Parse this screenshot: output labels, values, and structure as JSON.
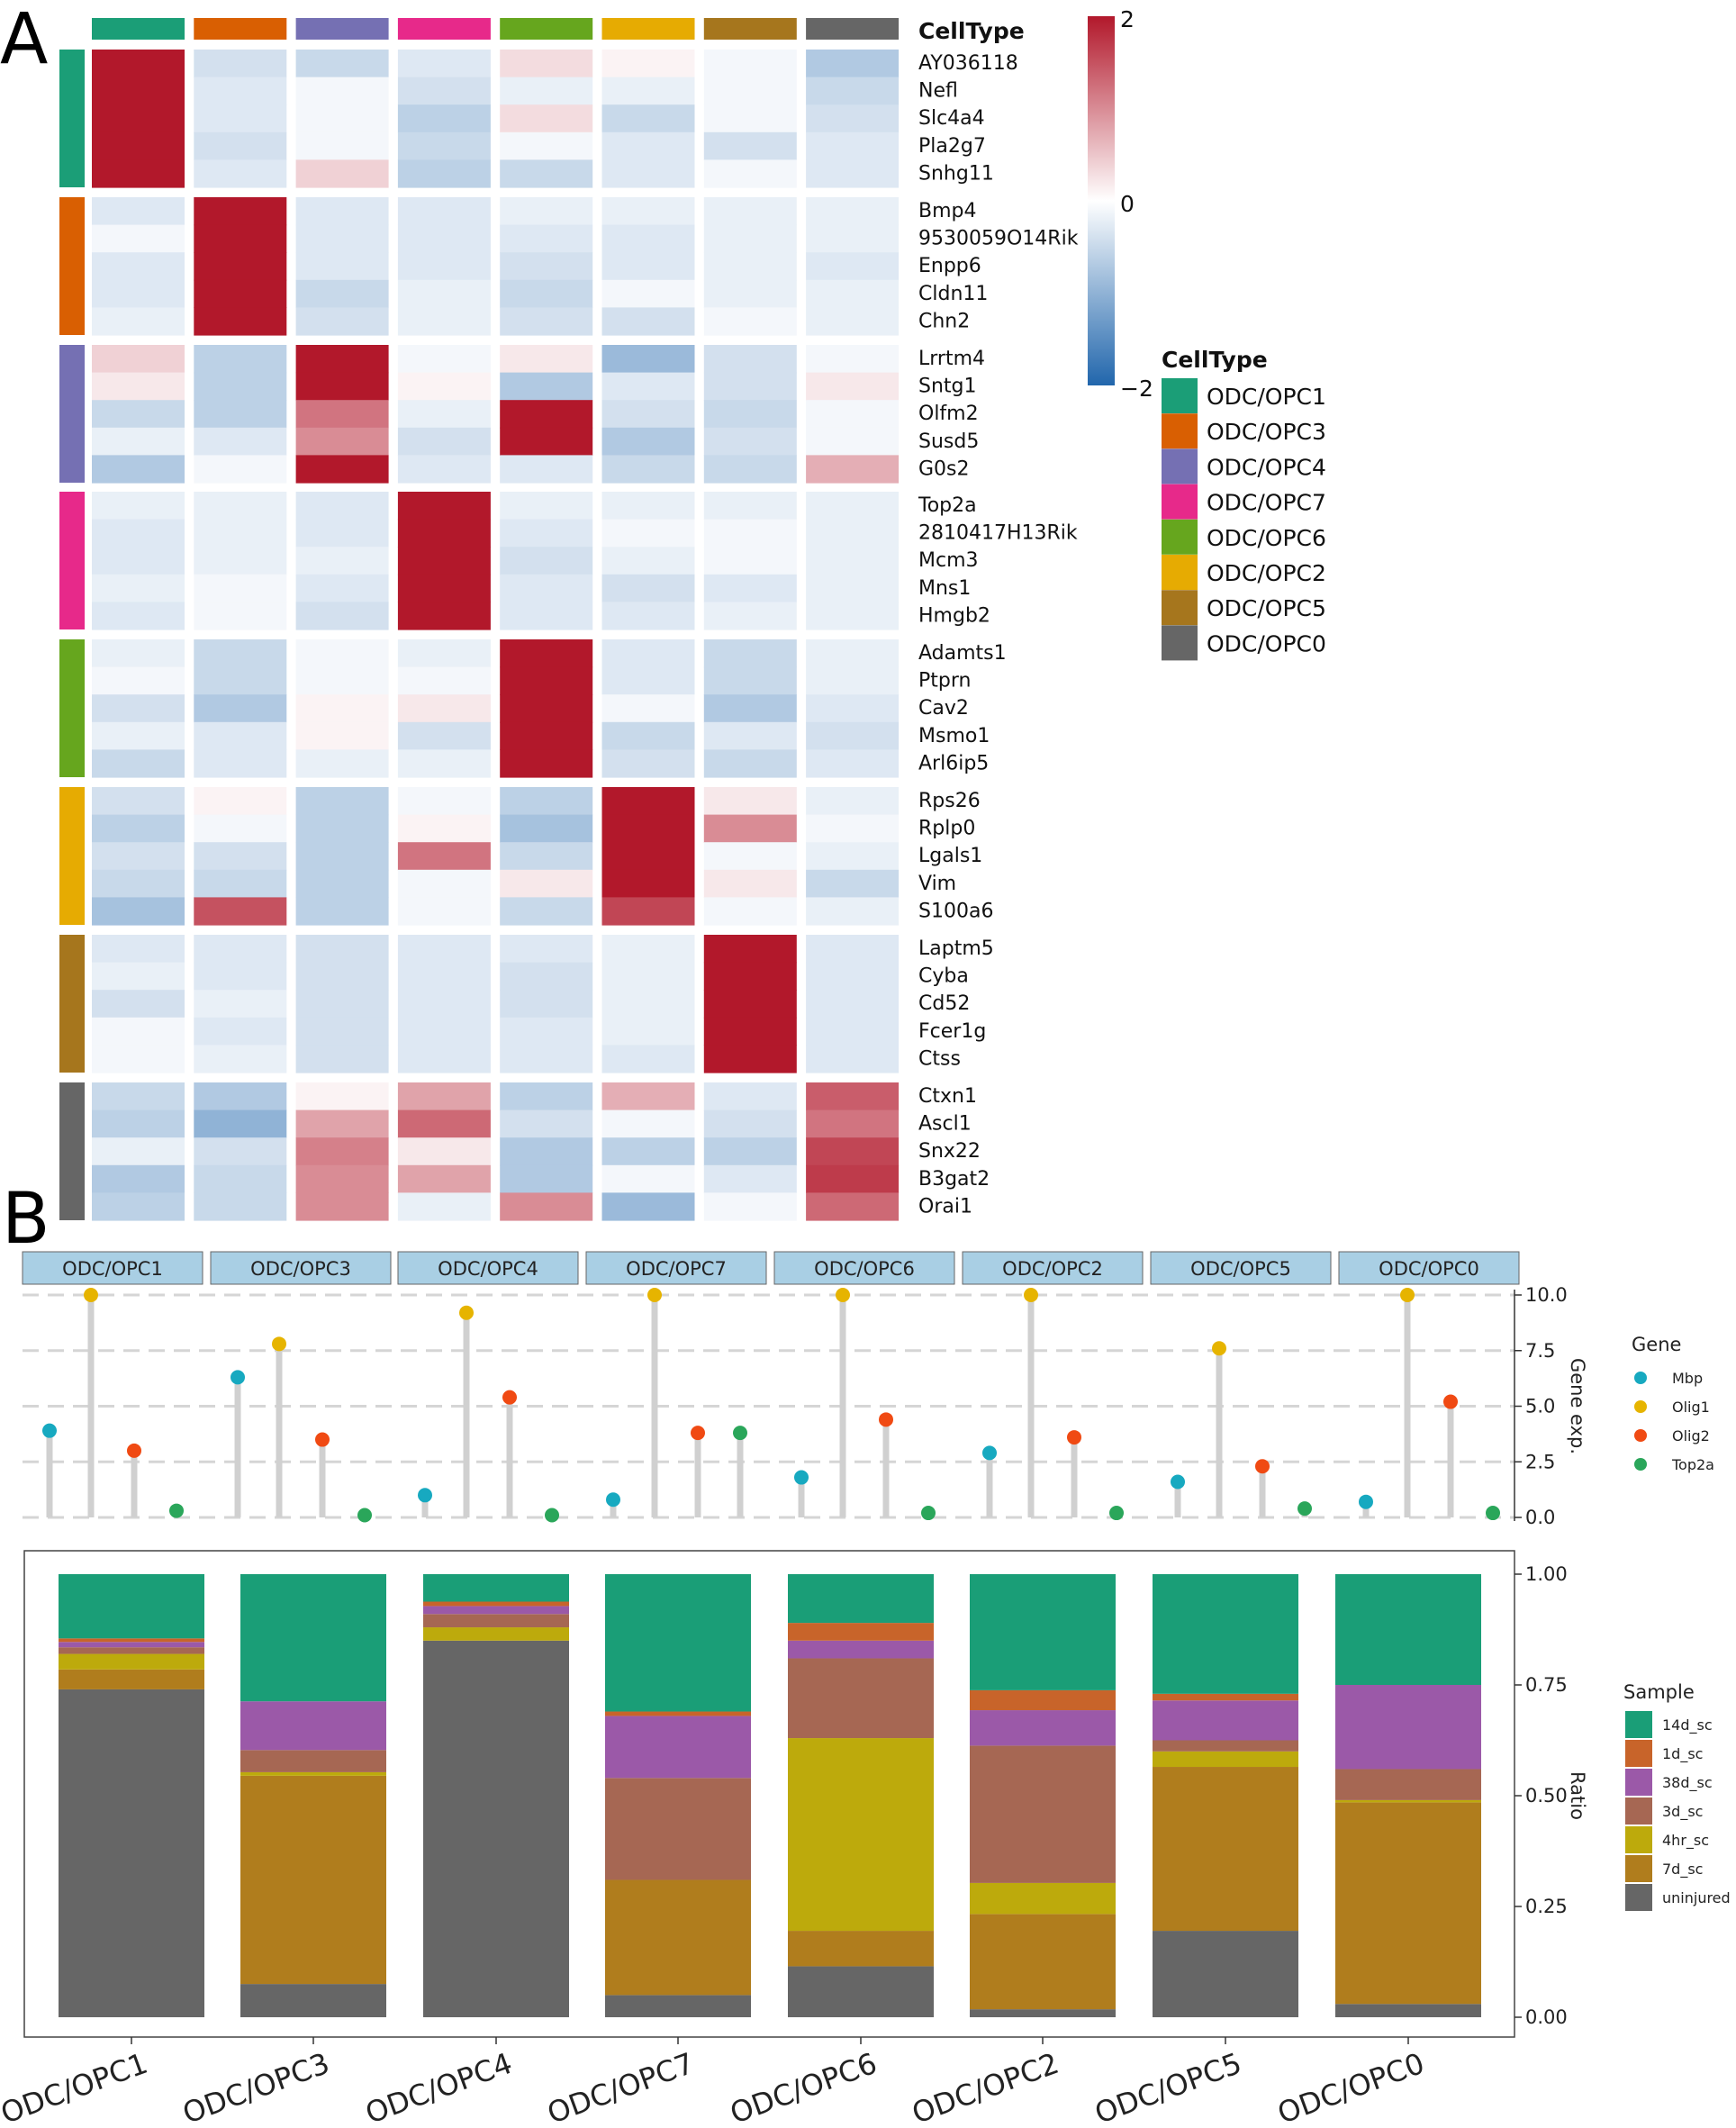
{
  "panels": {
    "a": "A",
    "b": "B"
  },
  "cell_types": [
    "ODC/OPC1",
    "ODC/OPC3",
    "ODC/OPC4",
    "ODC/OPC7",
    "ODC/OPC6",
    "ODC/OPC2",
    "ODC/OPC5",
    "ODC/OPC0"
  ],
  "cell_colors": [
    "#1b9e77",
    "#d95f02",
    "#7570b3",
    "#e7298a",
    "#66a61e",
    "#e6ab02",
    "#a6761d",
    "#666666"
  ],
  "chart_data": [
    {
      "type": "heatmap",
      "title": "",
      "annotation_title": "CellType",
      "legend_title": "CellType",
      "colorbar_ticks": [
        "2",
        "0",
        "−2"
      ],
      "colorbar_range": [
        -2,
        2
      ],
      "columns": [
        "ODC/OPC1",
        "ODC/OPC3",
        "ODC/OPC4",
        "ODC/OPC7",
        "ODC/OPC6",
        "ODC/OPC2",
        "ODC/OPC5",
        "ODC/OPC0"
      ],
      "gene_groups": [
        {
          "cluster": "ODC/OPC1",
          "genes": [
            "AY036118",
            "Nefl",
            "Slc4a4",
            "Pla2g7",
            "Snhg11"
          ],
          "values": [
            [
              2.5,
              -0.4,
              -0.5,
              -0.3,
              0.3,
              0.1,
              -0.1,
              -0.7
            ],
            [
              2.5,
              -0.3,
              -0.1,
              -0.4,
              -0.2,
              -0.2,
              -0.1,
              -0.5
            ],
            [
              2.5,
              -0.3,
              -0.1,
              -0.6,
              0.3,
              -0.5,
              -0.1,
              -0.4
            ],
            [
              2.5,
              -0.4,
              -0.1,
              -0.5,
              -0.1,
              -0.3,
              -0.4,
              -0.3
            ],
            [
              2.5,
              -0.3,
              0.4,
              -0.6,
              -0.5,
              -0.3,
              -0.1,
              -0.3
            ]
          ]
        },
        {
          "cluster": "ODC/OPC3",
          "genes": [
            "Bmp4",
            "9530059O14Rik",
            "Enpp6",
            "Cldn11",
            "Chn2"
          ],
          "values": [
            [
              -0.3,
              2.5,
              -0.3,
              -0.3,
              -0.2,
              -0.2,
              -0.2,
              -0.2
            ],
            [
              -0.1,
              2.5,
              -0.3,
              -0.3,
              -0.3,
              -0.3,
              -0.2,
              -0.2
            ],
            [
              -0.3,
              2.5,
              -0.3,
              -0.3,
              -0.4,
              -0.3,
              -0.2,
              -0.3
            ],
            [
              -0.3,
              2.5,
              -0.5,
              -0.2,
              -0.5,
              -0.1,
              -0.2,
              -0.2
            ],
            [
              -0.2,
              2.5,
              -0.4,
              -0.2,
              -0.4,
              -0.4,
              -0.1,
              -0.2
            ]
          ]
        },
        {
          "cluster": "ODC/OPC4",
          "genes": [
            "Lrrtm4",
            "Sntg1",
            "Olfm2",
            "Susd5",
            "G0s2"
          ],
          "values": [
            [
              0.4,
              -0.6,
              2.2,
              -0.1,
              0.2,
              -0.9,
              -0.4,
              -0.1
            ],
            [
              0.2,
              -0.6,
              2.2,
              0.1,
              -0.7,
              -0.3,
              -0.4,
              0.2
            ],
            [
              -0.5,
              -0.6,
              1.2,
              -0.2,
              2.3,
              -0.4,
              -0.5,
              -0.1
            ],
            [
              -0.2,
              -0.3,
              1.0,
              -0.4,
              2.3,
              -0.7,
              -0.4,
              -0.1
            ],
            [
              -0.7,
              -0.1,
              2.2,
              -0.3,
              -0.3,
              -0.5,
              -0.5,
              0.7
            ]
          ]
        },
        {
          "cluster": "ODC/OPC7",
          "genes": [
            "Top2a",
            "2810417H13Rik",
            "Mcm3",
            "Mns1",
            "Hmgb2"
          ],
          "values": [
            [
              -0.2,
              -0.2,
              -0.3,
              2.5,
              -0.2,
              -0.2,
              -0.2,
              -0.2
            ],
            [
              -0.3,
              -0.2,
              -0.3,
              2.5,
              -0.3,
              -0.1,
              -0.1,
              -0.2
            ],
            [
              -0.3,
              -0.2,
              -0.2,
              2.5,
              -0.4,
              -0.2,
              -0.1,
              -0.2
            ],
            [
              -0.2,
              -0.1,
              -0.3,
              2.5,
              -0.3,
              -0.4,
              -0.3,
              -0.2
            ],
            [
              -0.3,
              -0.1,
              -0.4,
              2.5,
              -0.3,
              -0.3,
              -0.2,
              -0.2
            ]
          ]
        },
        {
          "cluster": "ODC/OPC6",
          "genes": [
            "Adamts1",
            "Ptprn",
            "Cav2",
            "Msmo1",
            "Arl6ip5"
          ],
          "values": [
            [
              -0.2,
              -0.5,
              -0.1,
              -0.2,
              2.5,
              -0.3,
              -0.5,
              -0.2
            ],
            [
              -0.1,
              -0.5,
              -0.1,
              -0.1,
              2.5,
              -0.3,
              -0.5,
              -0.2
            ],
            [
              -0.4,
              -0.7,
              0.1,
              0.2,
              2.5,
              -0.1,
              -0.7,
              -0.3
            ],
            [
              -0.2,
              -0.3,
              0.1,
              -0.4,
              2.5,
              -0.5,
              -0.3,
              -0.4
            ],
            [
              -0.5,
              -0.3,
              -0.2,
              -0.2,
              2.5,
              -0.4,
              -0.5,
              -0.3
            ]
          ]
        },
        {
          "cluster": "ODC/OPC2",
          "genes": [
            "Rps26",
            "Rplp0",
            "Lgals1",
            "Vim",
            "S100a6"
          ],
          "values": [
            [
              -0.4,
              0.1,
              -0.6,
              -0.1,
              -0.6,
              2.3,
              0.2,
              -0.2
            ],
            [
              -0.6,
              -0.1,
              -0.6,
              0.1,
              -0.8,
              2.1,
              1.0,
              -0.1
            ],
            [
              -0.4,
              -0.4,
              -0.6,
              1.2,
              -0.5,
              2.3,
              -0.1,
              -0.2
            ],
            [
              -0.5,
              -0.5,
              -0.6,
              -0.1,
              0.2,
              2.3,
              0.2,
              -0.5
            ],
            [
              -0.8,
              1.5,
              -0.6,
              -0.1,
              -0.5,
              1.6,
              -0.1,
              -0.2
            ]
          ]
        },
        {
          "cluster": "ODC/OPC5",
          "genes": [
            "Laptm5",
            "Cyba",
            "Cd52",
            "Fcer1g",
            "Ctss"
          ],
          "values": [
            [
              -0.3,
              -0.3,
              -0.4,
              -0.3,
              -0.3,
              -0.2,
              2.5,
              -0.3
            ],
            [
              -0.2,
              -0.3,
              -0.4,
              -0.3,
              -0.4,
              -0.2,
              2.5,
              -0.3
            ],
            [
              -0.4,
              -0.2,
              -0.4,
              -0.3,
              -0.4,
              -0.2,
              2.5,
              -0.3
            ],
            [
              -0.1,
              -0.3,
              -0.4,
              -0.3,
              -0.3,
              -0.2,
              2.5,
              -0.3
            ],
            [
              -0.1,
              -0.2,
              -0.4,
              -0.3,
              -0.3,
              -0.3,
              2.5,
              -0.3
            ]
          ]
        },
        {
          "cluster": "ODC/OPC0",
          "genes": [
            "Ctxn1",
            "Ascl1",
            "Snx22",
            "B3gat2",
            "Orai1"
          ],
          "values": [
            [
              -0.5,
              -0.7,
              0.1,
              0.8,
              -0.6,
              0.7,
              -0.3,
              1.4
            ],
            [
              -0.6,
              -1.0,
              0.8,
              1.3,
              -0.4,
              -0.1,
              -0.4,
              1.2
            ],
            [
              -0.2,
              -0.4,
              1.1,
              0.2,
              -0.7,
              -0.6,
              -0.6,
              1.6
            ],
            [
              -0.7,
              -0.5,
              1.0,
              0.8,
              -0.7,
              -0.1,
              -0.3,
              1.7
            ],
            [
              -0.6,
              -0.5,
              1.0,
              -0.2,
              1.0,
              -0.9,
              -0.1,
              1.3
            ]
          ]
        }
      ]
    },
    {
      "type": "scatter",
      "subtype": "lollipop",
      "ylabel": "Gene exp.",
      "ylim": [
        0,
        10
      ],
      "yticks": [
        "0.0",
        "2.5",
        "5.0",
        "7.5",
        "10.0"
      ],
      "legend_title": "Gene",
      "genes": [
        "Mbp",
        "Olig1",
        "Olig2",
        "Top2a"
      ],
      "gene_colors": [
        "#17a9c0",
        "#e6b400",
        "#f04a13",
        "#2aa65a"
      ],
      "categories": [
        "ODC/OPC1",
        "ODC/OPC3",
        "ODC/OPC4",
        "ODC/OPC7",
        "ODC/OPC6",
        "ODC/OPC2",
        "ODC/OPC5",
        "ODC/OPC0"
      ],
      "series": [
        {
          "name": "Mbp",
          "values": [
            3.9,
            6.3,
            1.0,
            0.8,
            1.8,
            2.9,
            1.6,
            0.7
          ]
        },
        {
          "name": "Olig1",
          "values": [
            10.0,
            7.8,
            9.2,
            10.0,
            10.0,
            10.0,
            7.6,
            10.0
          ]
        },
        {
          "name": "Olig2",
          "values": [
            3.0,
            3.5,
            5.4,
            3.8,
            4.4,
            3.6,
            2.3,
            5.2
          ]
        },
        {
          "name": "Top2a",
          "values": [
            0.3,
            0.1,
            0.1,
            3.8,
            0.2,
            0.2,
            0.4,
            0.2
          ]
        }
      ]
    },
    {
      "type": "bar",
      "subtype": "stacked",
      "ylabel": "Ratio",
      "ylim": [
        0,
        1
      ],
      "yticks": [
        "0.00",
        "0.25",
        "0.50",
        "0.75",
        "1.00"
      ],
      "legend_title": "Sample",
      "categories": [
        "ODC/OPC1",
        "ODC/OPC3",
        "ODC/OPC4",
        "ODC/OPC7",
        "ODC/OPC6",
        "ODC/OPC2",
        "ODC/OPC5",
        "ODC/OPC0"
      ],
      "stack_order_bottom_to_top": [
        "uninjured",
        "7d_sc",
        "4hr_sc",
        "3d_sc",
        "38d_sc",
        "1d_sc",
        "14d_sc"
      ],
      "legend_order": [
        "14d_sc",
        "1d_sc",
        "38d_sc",
        "3d_sc",
        "4hr_sc",
        "7d_sc",
        "uninjured"
      ],
      "sample_colors": {
        "14d_sc": "#1a9e77",
        "1d_sc": "#c8642a",
        "38d_sc": "#9b59a8",
        "3d_sc": "#a66753",
        "4hr_sc": "#bdaa0c",
        "7d_sc": "#b07d1d",
        "uninjured": "#666666"
      },
      "series": [
        {
          "name": "uninjured",
          "values": [
            0.74,
            0.075,
            0.85,
            0.05,
            0.115,
            0.018,
            0.195,
            0.03
          ]
        },
        {
          "name": "7d_sc",
          "values": [
            0.045,
            0.47,
            0.0,
            0.26,
            0.08,
            0.215,
            0.37,
            0.455
          ]
        },
        {
          "name": "4hr_sc",
          "values": [
            0.035,
            0.008,
            0.03,
            0.0,
            0.435,
            0.07,
            0.035,
            0.005
          ]
        },
        {
          "name": "3d_sc",
          "values": [
            0.015,
            0.05,
            0.03,
            0.23,
            0.18,
            0.31,
            0.025,
            0.07
          ]
        },
        {
          "name": "38d_sc",
          "values": [
            0.012,
            0.11,
            0.018,
            0.14,
            0.04,
            0.08,
            0.09,
            0.19
          ]
        },
        {
          "name": "1d_sc",
          "values": [
            0.008,
            0.0,
            0.01,
            0.01,
            0.04,
            0.045,
            0.015,
            0.0
          ]
        },
        {
          "name": "14d_sc",
          "values": [
            0.145,
            0.287,
            0.062,
            0.31,
            0.11,
            0.262,
            0.27,
            0.25
          ]
        }
      ]
    }
  ]
}
